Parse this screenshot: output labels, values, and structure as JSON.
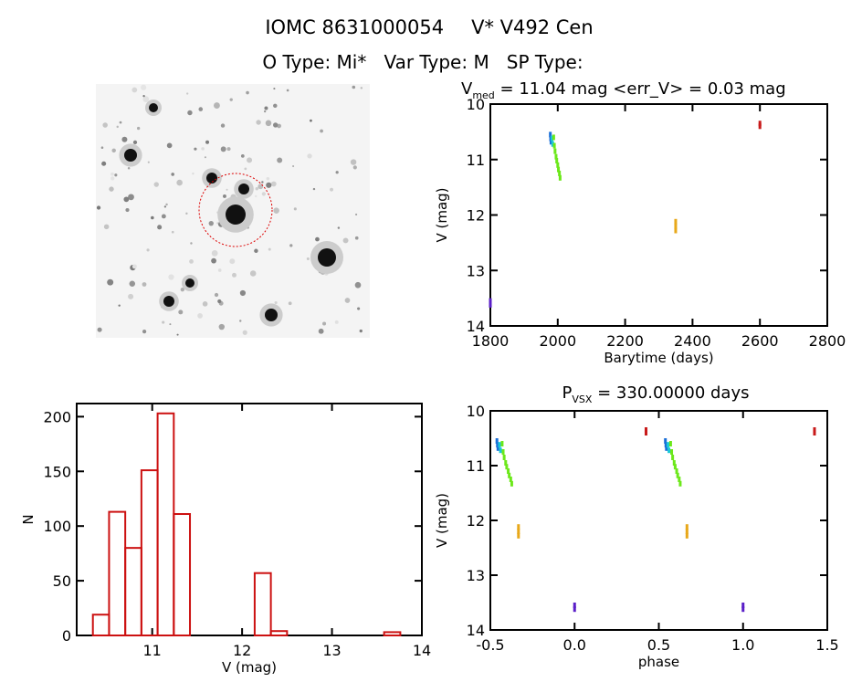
{
  "header": {
    "line1_id": "IOMC 8631000054",
    "line1_name": "V* V492 Cen",
    "line2": "O Type: Mi*   Var Type: M   SP Type:"
  },
  "chart_data": [
    {
      "type": "image",
      "title": "sky-cutout"
    },
    {
      "type": "scatter",
      "title": "V_med = 11.04 mag <err_V> = 0.03 mag",
      "title_parts": {
        "v": "V",
        "sub": "med",
        "rest": " = 11.04 mag <err_V> = 0.03 mag"
      },
      "xlabel": "Barytime (days)",
      "ylabel": "V (mag)",
      "xlim": [
        1800,
        2800
      ],
      "ylim": [
        14,
        10
      ],
      "xticks": [
        1800,
        2000,
        2200,
        2400,
        2600,
        2800
      ],
      "yticks": [
        10,
        11,
        12,
        13,
        14
      ],
      "points": [
        [
          1800,
          13.55,
          "#5a1fc8"
        ],
        [
          1800,
          13.62,
          "#5a1fc8"
        ],
        [
          1978,
          10.55,
          "#1a6fd8"
        ],
        [
          1979,
          10.62,
          "#1a6fd8"
        ],
        [
          1980,
          10.68,
          "#1a6fd8"
        ],
        [
          1983,
          10.62,
          "#19c8d8"
        ],
        [
          1985,
          10.72,
          "#19c8d8"
        ],
        [
          1988,
          10.6,
          "#6ce81a"
        ],
        [
          1990,
          10.75,
          "#6ce81a"
        ],
        [
          1992,
          10.85,
          "#6ce81a"
        ],
        [
          1995,
          10.95,
          "#6ce81a"
        ],
        [
          1997,
          11.02,
          "#6ce81a"
        ],
        [
          2000,
          11.1,
          "#6ce81a"
        ],
        [
          2002,
          11.18,
          "#6ce81a"
        ],
        [
          2005,
          11.25,
          "#6ce81a"
        ],
        [
          2007,
          11.33,
          "#6ce81a"
        ],
        [
          2350,
          12.12,
          "#e8a81a"
        ],
        [
          2350,
          12.2,
          "#e8a81a"
        ],
        [
          2350,
          12.28,
          "#e8a81a"
        ],
        [
          2600,
          10.35,
          "#c81a1a"
        ],
        [
          2600,
          10.4,
          "#c81a1a"
        ]
      ]
    },
    {
      "type": "bar",
      "xlabel": "V (mag)",
      "ylabel": "N",
      "xlim": [
        10.16,
        14
      ],
      "ylim": [
        0,
        212
      ],
      "xticks": [
        11,
        12,
        13,
        14
      ],
      "yticks": [
        0,
        50,
        100,
        150,
        200
      ],
      "bin_start": 10.34,
      "bin_width": 0.18,
      "values": [
        19,
        113,
        80,
        151,
        203,
        111,
        0,
        0,
        0,
        0,
        57,
        4,
        0,
        0,
        0,
        0,
        0,
        0,
        3
      ]
    },
    {
      "type": "scatter",
      "title_parts": {
        "p": "P",
        "sub": "VSX",
        "rest": " = 330.00000 days"
      },
      "xlabel": "phase",
      "ylabel": "V (mag)",
      "xlim": [
        -0.5,
        1.5
      ],
      "ylim": [
        14,
        10
      ],
      "xticks": [
        "-0.5",
        "0.0",
        "0.5",
        "1.0",
        "1.5"
      ],
      "yticks": [
        10,
        11,
        12,
        13,
        14
      ],
      "points": [
        [
          0.0,
          13.55,
          "#5a1fc8"
        ],
        [
          0.0,
          13.62,
          "#5a1fc8"
        ],
        [
          1.0,
          13.55,
          "#5a1fc8"
        ],
        [
          1.0,
          13.62,
          "#5a1fc8"
        ],
        [
          -0.461,
          10.55,
          "#1a6fd8"
        ],
        [
          -0.458,
          10.62,
          "#1a6fd8"
        ],
        [
          -0.455,
          10.68,
          "#1a6fd8"
        ],
        [
          0.539,
          10.55,
          "#1a6fd8"
        ],
        [
          0.542,
          10.62,
          "#1a6fd8"
        ],
        [
          0.545,
          10.68,
          "#1a6fd8"
        ],
        [
          -0.446,
          10.62,
          "#19c8d8"
        ],
        [
          -0.44,
          10.72,
          "#19c8d8"
        ],
        [
          0.554,
          10.62,
          "#19c8d8"
        ],
        [
          0.56,
          10.72,
          "#19c8d8"
        ],
        [
          -0.43,
          10.6,
          "#6ce81a"
        ],
        [
          -0.424,
          10.75,
          "#6ce81a"
        ],
        [
          -0.418,
          10.85,
          "#6ce81a"
        ],
        [
          -0.409,
          10.95,
          "#6ce81a"
        ],
        [
          -0.403,
          11.02,
          "#6ce81a"
        ],
        [
          -0.394,
          11.1,
          "#6ce81a"
        ],
        [
          -0.388,
          11.18,
          "#6ce81a"
        ],
        [
          -0.379,
          11.25,
          "#6ce81a"
        ],
        [
          -0.373,
          11.33,
          "#6ce81a"
        ],
        [
          0.57,
          10.6,
          "#6ce81a"
        ],
        [
          0.576,
          10.75,
          "#6ce81a"
        ],
        [
          0.582,
          10.85,
          "#6ce81a"
        ],
        [
          0.591,
          10.95,
          "#6ce81a"
        ],
        [
          0.597,
          11.02,
          "#6ce81a"
        ],
        [
          0.606,
          11.1,
          "#6ce81a"
        ],
        [
          0.612,
          11.18,
          "#6ce81a"
        ],
        [
          0.621,
          11.25,
          "#6ce81a"
        ],
        [
          0.627,
          11.33,
          "#6ce81a"
        ],
        [
          -0.333,
          12.12,
          "#e8a81a"
        ],
        [
          -0.333,
          12.2,
          "#e8a81a"
        ],
        [
          -0.333,
          12.28,
          "#e8a81a"
        ],
        [
          0.667,
          12.12,
          "#e8a81a"
        ],
        [
          0.667,
          12.2,
          "#e8a81a"
        ],
        [
          0.667,
          12.28,
          "#e8a81a"
        ],
        [
          0.424,
          10.35,
          "#c81a1a"
        ],
        [
          0.424,
          10.4,
          "#c81a1a"
        ],
        [
          1.424,
          10.35,
          "#c81a1a"
        ],
        [
          1.424,
          10.4,
          "#c81a1a"
        ]
      ]
    }
  ]
}
